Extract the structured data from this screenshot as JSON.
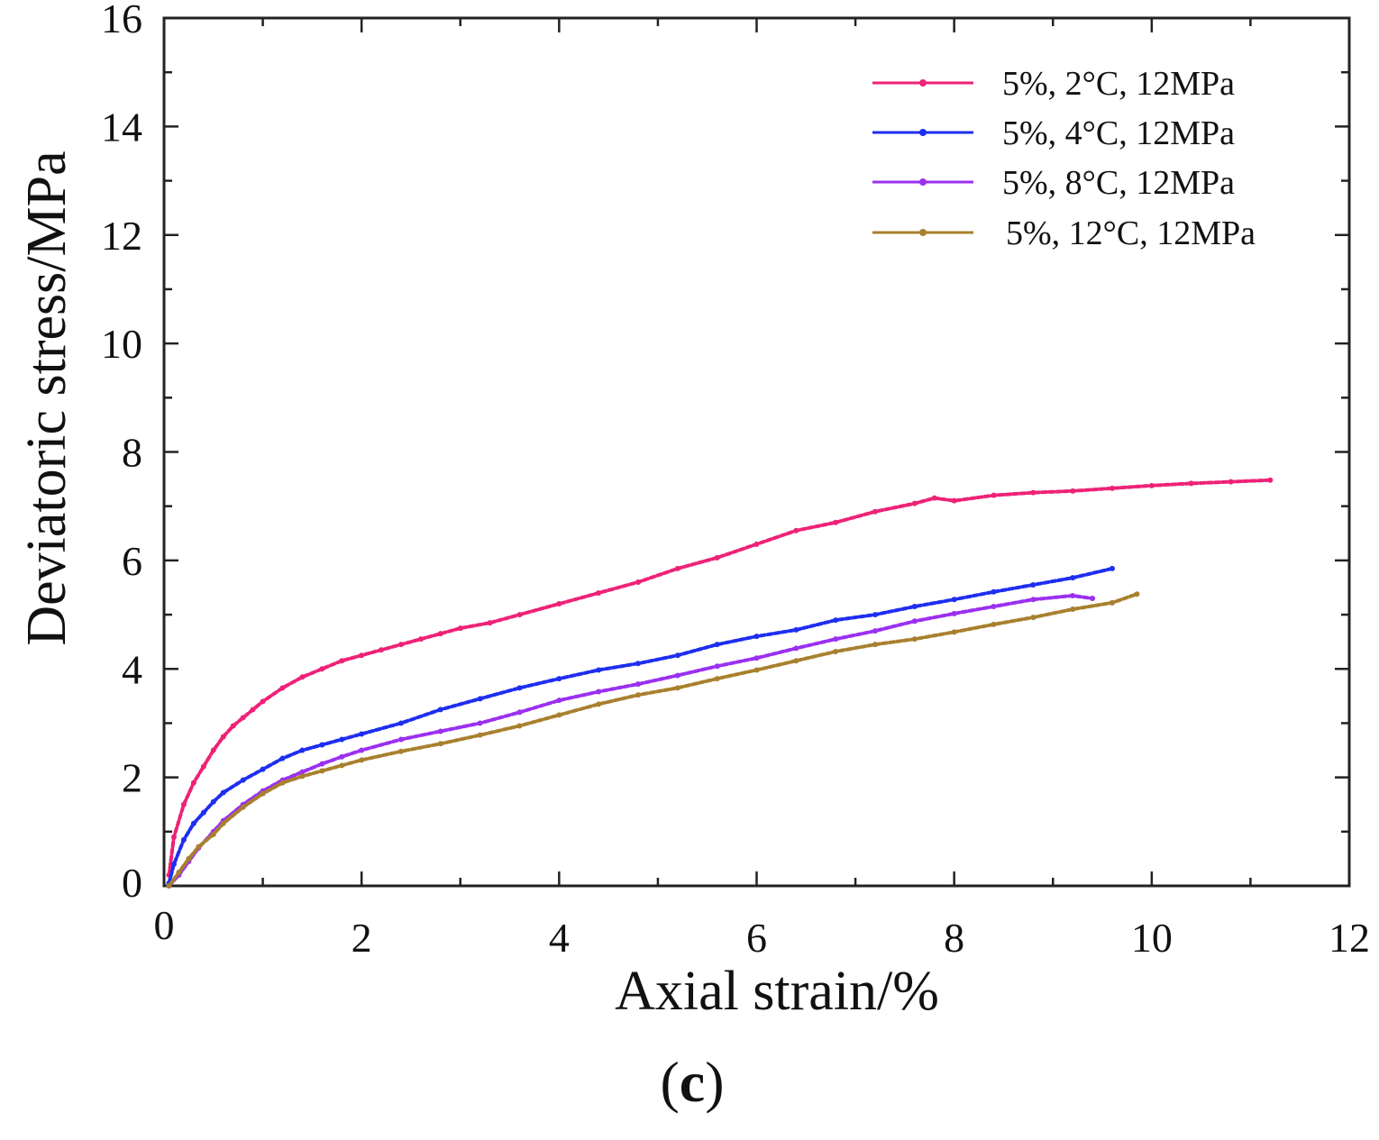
{
  "chart_data": {
    "type": "line",
    "title": "",
    "xlabel": "Axial strain/%",
    "ylabel": "Deviatoric stress/MPa",
    "xlim": [
      0,
      12
    ],
    "ylim": [
      0,
      16
    ],
    "xticks": [
      "0",
      "2",
      "4",
      "6",
      "8",
      "10",
      "12"
    ],
    "yticks": [
      "0",
      "2",
      "4",
      "6",
      "8",
      "10",
      "12",
      "14",
      "16"
    ],
    "legend_position": "top-right",
    "panel_label": {
      "open": "(",
      "letter": "c",
      "close": ")"
    },
    "series": [
      {
        "name": "5%, 2°C, 12MPa",
        "color": "#ee2277",
        "x": [
          0.05,
          0.1,
          0.2,
          0.3,
          0.4,
          0.5,
          0.6,
          0.7,
          0.8,
          0.9,
          1.0,
          1.2,
          1.4,
          1.6,
          1.8,
          2.0,
          2.2,
          2.4,
          2.6,
          2.8,
          3.0,
          3.3,
          3.6,
          4.0,
          4.4,
          4.8,
          5.2,
          5.6,
          6.0,
          6.4,
          6.8,
          7.2,
          7.6,
          7.8,
          8.0,
          8.4,
          8.8,
          9.2,
          9.6,
          10.0,
          10.4,
          10.8,
          11.2
        ],
        "y": [
          0.2,
          0.9,
          1.5,
          1.9,
          2.2,
          2.5,
          2.75,
          2.95,
          3.1,
          3.25,
          3.4,
          3.65,
          3.85,
          4.0,
          4.15,
          4.25,
          4.35,
          4.45,
          4.55,
          4.65,
          4.75,
          4.85,
          5.0,
          5.2,
          5.4,
          5.6,
          5.85,
          6.05,
          6.3,
          6.55,
          6.7,
          6.9,
          7.05,
          7.15,
          7.1,
          7.2,
          7.25,
          7.28,
          7.33,
          7.38,
          7.42,
          7.45,
          7.48
        ]
      },
      {
        "name": "5%, 4°C, 12MPa",
        "color": "#1e2ef0",
        "x": [
          0.05,
          0.1,
          0.2,
          0.3,
          0.4,
          0.5,
          0.6,
          0.8,
          1.0,
          1.2,
          1.4,
          1.6,
          1.8,
          2.0,
          2.4,
          2.8,
          3.2,
          3.6,
          4.0,
          4.4,
          4.8,
          5.2,
          5.6,
          6.0,
          6.4,
          6.8,
          7.2,
          7.6,
          8.0,
          8.4,
          8.8,
          9.2,
          9.6
        ],
        "y": [
          0.05,
          0.4,
          0.85,
          1.15,
          1.35,
          1.55,
          1.72,
          1.95,
          2.15,
          2.35,
          2.5,
          2.6,
          2.7,
          2.8,
          3.0,
          3.25,
          3.45,
          3.65,
          3.82,
          3.98,
          4.1,
          4.25,
          4.45,
          4.6,
          4.72,
          4.9,
          5.0,
          5.15,
          5.28,
          5.42,
          5.55,
          5.68,
          5.85
        ]
      },
      {
        "name": "5%, 8°C, 12MPa",
        "color": "#9b30f0",
        "x": [
          0.05,
          0.15,
          0.25,
          0.35,
          0.5,
          0.6,
          0.8,
          1.0,
          1.2,
          1.4,
          1.6,
          1.8,
          2.0,
          2.4,
          2.8,
          3.2,
          3.6,
          4.0,
          4.4,
          4.8,
          5.2,
          5.6,
          6.0,
          6.4,
          6.8,
          7.2,
          7.6,
          8.0,
          8.4,
          8.8,
          9.2,
          9.4
        ],
        "y": [
          0.0,
          0.2,
          0.45,
          0.7,
          1.0,
          1.2,
          1.5,
          1.75,
          1.95,
          2.1,
          2.25,
          2.38,
          2.5,
          2.7,
          2.85,
          3.0,
          3.2,
          3.42,
          3.58,
          3.72,
          3.88,
          4.05,
          4.2,
          4.38,
          4.55,
          4.7,
          4.88,
          5.02,
          5.15,
          5.28,
          5.35,
          5.3
        ]
      },
      {
        "name": "5%, 12°C, 12MPa",
        "color": "#a8802e",
        "x": [
          0.05,
          0.15,
          0.25,
          0.35,
          0.5,
          0.6,
          0.8,
          1.0,
          1.2,
          1.4,
          1.6,
          1.8,
          2.0,
          2.4,
          2.8,
          3.2,
          3.6,
          4.0,
          4.4,
          4.8,
          5.2,
          5.6,
          6.0,
          6.4,
          6.8,
          7.2,
          7.6,
          8.0,
          8.4,
          8.8,
          9.2,
          9.6,
          9.85
        ],
        "y": [
          0.0,
          0.25,
          0.5,
          0.72,
          0.95,
          1.15,
          1.45,
          1.7,
          1.9,
          2.02,
          2.12,
          2.22,
          2.32,
          2.48,
          2.62,
          2.78,
          2.95,
          3.15,
          3.35,
          3.52,
          3.65,
          3.82,
          3.98,
          4.15,
          4.32,
          4.45,
          4.55,
          4.68,
          4.82,
          4.95,
          5.1,
          5.22,
          5.38
        ]
      }
    ]
  }
}
